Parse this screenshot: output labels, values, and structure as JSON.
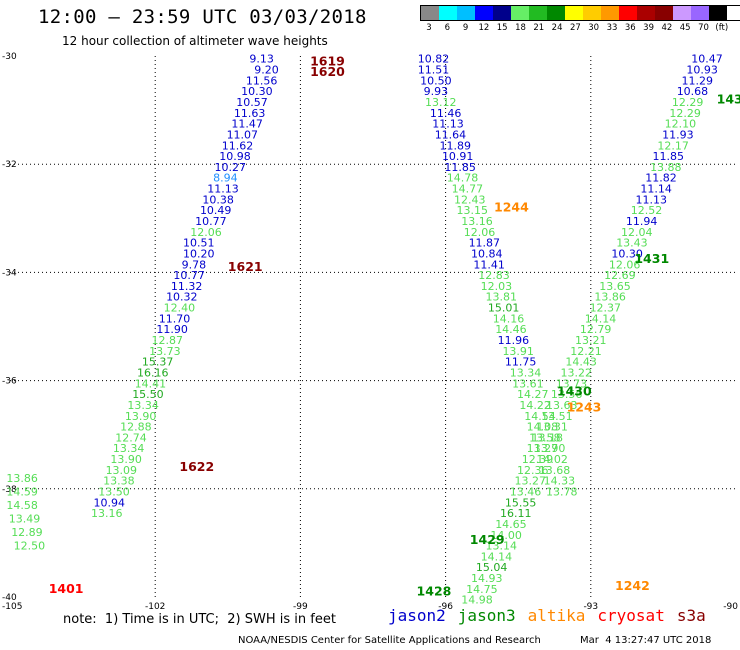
{
  "header": {
    "title": "12:00 – 23:59 UTC 03/03/2018",
    "subtitle": "12 hour collection of altimeter wave heights"
  },
  "legend": {
    "colors": [
      "#888888",
      "#00ffff",
      "#00bfff",
      "#0000ff",
      "#00008b",
      "#66ee66",
      "#22bb22",
      "#008800",
      "#ffff00",
      "#ffcc00",
      "#ff9900",
      "#ff0000",
      "#aa0000",
      "#880000",
      "#cc99ff",
      "#9966ff",
      "#000000"
    ],
    "labels": [
      "3",
      "6",
      "9",
      "12",
      "15",
      "18",
      "21",
      "24",
      "27",
      "30",
      "33",
      "36",
      "39",
      "42",
      "45",
      "70",
      "(ft)"
    ]
  },
  "map": {
    "lon_min": -105,
    "lon_max": -90,
    "lat_min": -40,
    "lat_max": -30,
    "lon_ticks": [
      -105,
      -102,
      -99,
      -96,
      -93,
      -90
    ],
    "lat_ticks": [
      -30,
      -32,
      -34,
      -36,
      -38,
      -40
    ],
    "lon_tick_labels": [
      "-105",
      "-102",
      "-99",
      "-96",
      "-93",
      "-90"
    ],
    "lat_tick_labels": [
      "-30",
      "-32",
      "-34",
      "-36",
      "-38",
      "-40"
    ],
    "sat_colors": {
      "jason2": "#0000cc",
      "jason3": "#008800",
      "altika": "#ff8800",
      "cryosat": "#ff0000",
      "s3a": "#880000"
    },
    "obs_colors": {
      "c12": "#0000cc",
      "c15": "#1a1ab0",
      "c9": "#1e90ff",
      "c18": "#55dd55",
      "c21": "#22aa22",
      "c24": "#006600"
    }
  },
  "pass_labels": [
    {
      "text": "1619",
      "sat": "s3a",
      "lon": -98.8,
      "lat": -30.1
    },
    {
      "text": "1620",
      "sat": "s3a",
      "lon": -98.8,
      "lat": -30.3
    },
    {
      "text": "1621",
      "sat": "s3a",
      "lon": -100.5,
      "lat": -33.9
    },
    {
      "text": "1622",
      "sat": "s3a",
      "lon": -101.5,
      "lat": -37.6
    },
    {
      "text": "1401",
      "sat": "cryosat",
      "lon": -104.2,
      "lat": -39.85
    },
    {
      "text": "1244",
      "sat": "altika",
      "lon": -95.0,
      "lat": -32.8
    },
    {
      "text": "1243",
      "sat": "altika",
      "lon": -93.5,
      "lat": -36.5
    },
    {
      "text": "1242",
      "sat": "altika",
      "lon": -92.5,
      "lat": -39.8
    },
    {
      "text": "1430",
      "sat": "jason3",
      "lon": -93.7,
      "lat": -36.2
    },
    {
      "text": "1431",
      "sat": "jason3",
      "lon": -92.1,
      "lat": -33.75
    },
    {
      "text": "1429",
      "sat": "jason3",
      "lon": -95.5,
      "lat": -38.95
    },
    {
      "text": "1428",
      "sat": "jason3",
      "lon": -96.6,
      "lat": -39.9
    },
    {
      "text": "143",
      "sat": "jason3",
      "lon": -90.4,
      "lat": -30.8
    }
  ],
  "tracks": [
    {
      "name": "s3a-track-1620",
      "points": [
        [
          "9.13",
          -99.8,
          -30.05,
          "c12"
        ],
        [
          "9.20",
          -99.7,
          -30.25,
          "c12"
        ],
        [
          "11.56",
          -99.8,
          -30.45,
          "c12"
        ],
        [
          "10.30",
          -99.9,
          -30.65,
          "c12"
        ],
        [
          "10.57",
          -100.0,
          -30.85,
          "c12"
        ],
        [
          "11.63",
          -100.05,
          -31.05,
          "c12"
        ],
        [
          "11.47",
          -100.1,
          -31.25,
          "c12"
        ],
        [
          "11.07",
          -100.2,
          -31.45,
          "c12"
        ],
        [
          "11.62",
          -100.3,
          -31.65,
          "c12"
        ],
        [
          "10.98",
          -100.35,
          -31.85,
          "c12"
        ],
        [
          "10.27",
          -100.45,
          -32.05,
          "c12"
        ],
        [
          "8.94",
          -100.55,
          -32.25,
          "c9"
        ],
        [
          "11.13",
          -100.6,
          -32.45,
          "c12"
        ],
        [
          "10.38",
          -100.7,
          -32.65,
          "c12"
        ],
        [
          "10.49",
          -100.75,
          -32.85,
          "c12"
        ],
        [
          "10.77",
          -100.85,
          -33.05,
          "c12"
        ],
        [
          "12.06",
          -100.95,
          -33.25,
          "c18"
        ],
        [
          "10.51",
          -101.1,
          -33.45,
          "c12"
        ],
        [
          "10.20",
          -101.1,
          -33.65,
          "c12"
        ],
        [
          "9.78",
          -101.2,
          -33.85,
          "c12"
        ],
        [
          "10.77",
          -101.3,
          -34.05,
          "c12"
        ],
        [
          "11.32",
          -101.35,
          -34.25,
          "c12"
        ],
        [
          "10.32",
          -101.45,
          -34.45,
          "c12"
        ],
        [
          "12.40",
          -101.5,
          -34.65,
          "c18"
        ],
        [
          "11.70",
          -101.6,
          -34.85,
          "c12"
        ],
        [
          "11.90",
          -101.65,
          -35.05,
          "c12"
        ],
        [
          "12.87",
          -101.75,
          -35.25,
          "c18"
        ],
        [
          "13.73",
          -101.8,
          -35.45,
          "c18"
        ],
        [
          "15.37",
          -101.95,
          -35.65,
          "c21"
        ],
        [
          "16.16",
          -102.05,
          -35.85,
          "c21"
        ],
        [
          "14.41",
          -102.1,
          -36.05,
          "c18"
        ],
        [
          "15.50",
          -102.15,
          -36.25,
          "c21"
        ],
        [
          "13.34",
          -102.25,
          -36.45,
          "c18"
        ],
        [
          "13.90",
          -102.3,
          -36.65,
          "c18"
        ],
        [
          "12.88",
          -102.4,
          -36.85,
          "c18"
        ],
        [
          "12.74",
          -102.5,
          -37.05,
          "c18"
        ],
        [
          "13.34",
          -102.55,
          -37.25,
          "c18"
        ],
        [
          "13.90",
          -102.6,
          -37.45,
          "c18"
        ],
        [
          "13.09",
          -102.7,
          -37.65,
          "c18"
        ],
        [
          "13.38",
          -102.75,
          -37.85,
          "c18"
        ],
        [
          "13.50",
          -102.85,
          -38.05,
          "c18"
        ],
        [
          "10.94",
          -102.95,
          -38.25,
          "c12"
        ],
        [
          "13.16",
          -103.0,
          -38.45,
          "c18"
        ]
      ]
    },
    {
      "name": "cryosat-track-1401",
      "points": [
        [
          "13.86",
          -104.75,
          -37.8,
          "c18"
        ],
        [
          "14.59",
          -104.75,
          -38.05,
          "c18"
        ],
        [
          "14.58",
          -104.75,
          -38.3,
          "c18"
        ],
        [
          "13.49",
          -104.7,
          -38.55,
          "c18"
        ],
        [
          "12.89",
          -104.65,
          -38.8,
          "c18"
        ],
        [
          "12.50",
          -104.6,
          -39.05,
          "c18"
        ]
      ]
    },
    {
      "name": "jason2-track",
      "points": [
        [
          "10.82",
          -96.25,
          -30.05,
          "c12"
        ],
        [
          "11.51",
          -96.25,
          -30.25,
          "c12"
        ],
        [
          "10.50",
          -96.2,
          -30.45,
          "c12"
        ],
        [
          "9.93",
          -96.2,
          -30.65,
          "c12"
        ],
        [
          "13.12",
          -96.1,
          -30.85,
          "c18"
        ],
        [
          "11.46",
          -96.0,
          -31.05,
          "c12"
        ],
        [
          "11.13",
          -95.95,
          -31.25,
          "c12"
        ],
        [
          "11.64",
          -95.9,
          -31.45,
          "c12"
        ],
        [
          "11.89",
          -95.8,
          -31.65,
          "c12"
        ],
        [
          "10.91",
          -95.75,
          -31.85,
          "c12"
        ],
        [
          "11.85",
          -95.7,
          -32.05,
          "c12"
        ],
        [
          "14.78",
          -95.65,
          -32.25,
          "c18"
        ],
        [
          "14.77",
          -95.55,
          -32.45,
          "c18"
        ],
        [
          "12.43",
          -95.5,
          -32.65,
          "c18"
        ],
        [
          "13.15",
          -95.45,
          -32.85,
          "c18"
        ],
        [
          "13.16",
          -95.35,
          -33.05,
          "c18"
        ],
        [
          "12.06",
          -95.3,
          -33.25,
          "c18"
        ],
        [
          "11.87",
          -95.2,
          -33.45,
          "c12"
        ],
        [
          "10.84",
          -95.15,
          -33.65,
          "c12"
        ],
        [
          "11.41",
          -95.1,
          -33.85,
          "c12"
        ],
        [
          "12.83",
          -95.0,
          -34.05,
          "c18"
        ],
        [
          "12.03",
          -94.95,
          -34.25,
          "c18"
        ],
        [
          "13.81",
          -94.85,
          -34.45,
          "c18"
        ],
        [
          "15.01",
          -94.8,
          -34.65,
          "c21"
        ],
        [
          "14.16",
          -94.7,
          -34.85,
          "c18"
        ],
        [
          "14.46",
          -94.65,
          -35.05,
          "c18"
        ],
        [
          "11.96",
          -94.6,
          -35.25,
          "c12"
        ],
        [
          "13.91",
          -94.5,
          -35.45,
          "c18"
        ],
        [
          "11.75",
          -94.45,
          -35.65,
          "c12"
        ],
        [
          "13.34",
          -94.35,
          -35.85,
          "c18"
        ],
        [
          "13.61",
          -94.3,
          -36.05,
          "c18"
        ],
        [
          "14.27",
          -94.2,
          -36.25,
          "c18"
        ],
        [
          "14.22",
          -94.15,
          -36.45,
          "c18"
        ],
        [
          "14.54",
          -94.05,
          -36.65,
          "c18"
        ],
        [
          "14.08",
          -94.0,
          -36.85,
          "c18"
        ],
        [
          "13.58",
          -93.95,
          -37.05,
          "c18"
        ],
        [
          "13.90",
          -93.85,
          -37.25,
          "c18"
        ],
        [
          "14.02",
          -93.8,
          -37.45,
          "c18"
        ],
        [
          "13.68",
          -93.75,
          -37.65,
          "c18"
        ],
        [
          "14.33",
          -93.65,
          -37.85,
          "c18"
        ],
        [
          "13.78",
          -93.6,
          -38.05,
          "c18"
        ]
      ]
    },
    {
      "name": "jason3-track-1431",
      "points": [
        [
          "10.47",
          -90.6,
          -30.05,
          "c12"
        ],
        [
          "10.93",
          -90.7,
          -30.25,
          "c12"
        ],
        [
          "11.29",
          -90.8,
          -30.45,
          "c12"
        ],
        [
          "10.68",
          -90.9,
          -30.65,
          "c12"
        ],
        [
          "12.29",
          -91.0,
          -30.85,
          "c18"
        ],
        [
          "12.29",
          -91.05,
          -31.05,
          "c18"
        ],
        [
          "12.10",
          -91.15,
          -31.25,
          "c18"
        ],
        [
          "11.93",
          -91.2,
          -31.45,
          "c12"
        ],
        [
          "12.17",
          -91.3,
          -31.65,
          "c18"
        ],
        [
          "11.85",
          -91.4,
          -31.85,
          "c12"
        ],
        [
          "13.88",
          -91.45,
          -32.05,
          "c18"
        ],
        [
          "11.82",
          -91.55,
          -32.25,
          "c12"
        ],
        [
          "11.14",
          -91.65,
          -32.45,
          "c12"
        ],
        [
          "11.13",
          -91.75,
          -32.65,
          "c12"
        ],
        [
          "12.52",
          -91.85,
          -32.85,
          "c18"
        ],
        [
          "11.94",
          -91.95,
          -33.05,
          "c12"
        ],
        [
          "12.04",
          -92.05,
          -33.25,
          "c18"
        ],
        [
          "13.43",
          -92.15,
          -33.45,
          "c18"
        ],
        [
          "10.30",
          -92.25,
          -33.65,
          "c12"
        ],
        [
          "12.06",
          -92.3,
          -33.85,
          "c18"
        ],
        [
          "12.69",
          -92.4,
          -34.05,
          "c18"
        ],
        [
          "13.65",
          -92.5,
          -34.25,
          "c18"
        ],
        [
          "13.86",
          -92.6,
          -34.45,
          "c18"
        ],
        [
          "12.37",
          -92.7,
          -34.65,
          "c18"
        ],
        [
          "14.14",
          -92.8,
          -34.85,
          "c18"
        ],
        [
          "12.79",
          -92.9,
          -35.05,
          "c18"
        ],
        [
          "13.21",
          -93.0,
          -35.25,
          "c18"
        ],
        [
          "12.21",
          -93.1,
          -35.45,
          "c18"
        ],
        [
          "14.43",
          -93.2,
          -35.65,
          "c18"
        ],
        [
          "13.22",
          -93.3,
          -35.85,
          "c18"
        ],
        [
          "13.73",
          -93.4,
          -36.05,
          "c18"
        ],
        [
          "13.56",
          -93.5,
          -36.25,
          "c18"
        ],
        [
          "13.63",
          -93.6,
          -36.45,
          "c18"
        ],
        [
          "13.51",
          -93.7,
          -36.65,
          "c18"
        ],
        [
          "13.31",
          -93.8,
          -36.85,
          "c18"
        ],
        [
          "13.18",
          -93.9,
          -37.05,
          "c18"
        ],
        [
          "13.27",
          -94.0,
          -37.25,
          "c18"
        ],
        [
          "12.39",
          -94.1,
          -37.45,
          "c18"
        ],
        [
          "12.36",
          -94.2,
          -37.65,
          "c18"
        ],
        [
          "13.27",
          -94.25,
          -37.85,
          "c18"
        ],
        [
          "13.46",
          -94.35,
          -38.05,
          "c18"
        ],
        [
          "15.55",
          -94.45,
          -38.25,
          "c21"
        ],
        [
          "16.11",
          -94.55,
          -38.45,
          "c21"
        ],
        [
          "14.65",
          -94.65,
          -38.65,
          "c18"
        ],
        [
          "14.00",
          -94.75,
          -38.85,
          "c18"
        ],
        [
          "13.14",
          -94.85,
          -39.05,
          "c18"
        ],
        [
          "14.14",
          -94.95,
          -39.25,
          "c18"
        ],
        [
          "15.04",
          -95.05,
          -39.45,
          "c21"
        ],
        [
          "14.93",
          -95.15,
          -39.65,
          "c18"
        ],
        [
          "14.75",
          -95.25,
          -39.85,
          "c18"
        ],
        [
          "14.98",
          -95.35,
          -40.05,
          "c18"
        ]
      ]
    }
  ],
  "footer": {
    "note": "note:  1) Time is in UTC;  2) SWH is in feet",
    "sat_names": [
      "jason2",
      "jason3",
      "altika",
      "cryosat",
      "s3a"
    ],
    "credit": "NOAA/NESDIS Center for Satellite Applications and Research",
    "timestamp": "Mar  4 13:27:47 UTC 2018"
  }
}
